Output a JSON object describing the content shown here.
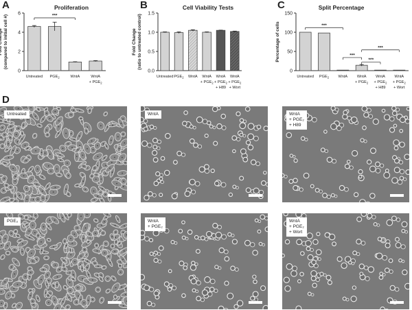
{
  "panel_letters": {
    "a": "A",
    "b": "B",
    "c": "C",
    "d": "D"
  },
  "chart_data": [
    {
      "type": "bar",
      "title": "Proliferation",
      "ylabel_lines": [
        "Fold Change",
        "(compared to initial cell #)"
      ],
      "categories": [
        [
          "Untreated"
        ],
        [
          "PGE₂"
        ],
        [
          "WntA"
        ],
        [
          "WntA",
          "+ PGE₂"
        ]
      ],
      "values": [
        4.6,
        4.6,
        0.9,
        1.0
      ],
      "errors": [
        0.1,
        0.45,
        0.03,
        0.05
      ],
      "fills": [
        "light",
        "light",
        "light",
        "light"
      ],
      "ylim": [
        0,
        6
      ],
      "yticks": [
        0,
        2,
        4,
        6
      ],
      "significance": [
        {
          "from": 0,
          "to": 2,
          "label": "***"
        }
      ]
    },
    {
      "type": "bar",
      "title": "Cell Viability Tests",
      "ylabel_lines": [
        "Fold  Change",
        "(ratio to untreated control)"
      ],
      "categories": [
        [
          "Untreated"
        ],
        [
          "PGE₂"
        ],
        [
          "WntA"
        ],
        [
          "WntA",
          "+ PGE₂"
        ],
        [
          "WntA",
          "+ PGE₂",
          "+ H89"
        ],
        [
          "WntA",
          "+ PGE₂",
          "+ Wort"
        ]
      ],
      "values": [
        1.0,
        0.99,
        1.05,
        1.0,
        1.05,
        1.02
      ],
      "errors": [
        0.01,
        0.02,
        0.015,
        0.01,
        0.005,
        0.01
      ],
      "fills": [
        "light",
        "light",
        "hatch",
        "light",
        "dark",
        "darkhatch"
      ],
      "ylim": [
        0,
        1.5
      ],
      "yticks": [
        0,
        0.5,
        1.0,
        1.5
      ],
      "significance": []
    },
    {
      "type": "bar",
      "title": "Split Percentage",
      "ylabel_lines": [
        "Percentage of cells"
      ],
      "categories": [
        [
          "Untreated"
        ],
        [
          "PGE₂"
        ],
        [
          "WntA"
        ],
        [
          "WntA",
          "+ PGE₂"
        ],
        [
          "WntA",
          "+ PGE₂",
          "+ H89"
        ],
        [
          "WntA",
          "+ PGE₂",
          "+ Wort"
        ]
      ],
      "values": [
        100,
        98,
        0.5,
        14,
        0.5,
        0.3
      ],
      "errors": [
        0,
        0,
        0,
        2,
        0,
        0
      ],
      "fills": [
        "light",
        "light",
        "light",
        "light",
        "light",
        "light"
      ],
      "ylim": [
        0,
        150
      ],
      "yticks": [
        0,
        50,
        100,
        150
      ],
      "significance": [
        {
          "from": 0,
          "to": 2,
          "label": "***"
        },
        {
          "from": 2,
          "to": 3,
          "label": "***"
        },
        {
          "from": 3,
          "to": 5,
          "label": "***"
        },
        {
          "from": 3,
          "to": 4,
          "label": "***"
        }
      ]
    }
  ],
  "micrographs": [
    {
      "label": "Untreated",
      "density": "dense"
    },
    {
      "label": "WntA",
      "density": "sparse"
    },
    {
      "label": "WntA\n+ PGE₂\n+ H89",
      "density": "sparse"
    },
    {
      "label": "PGE₂",
      "density": "dense"
    },
    {
      "label": "WntA\n+ PGE₂",
      "density": "sparse"
    },
    {
      "label": "WntA\n+ PGE₂\n+ Wort",
      "density": "sparse"
    }
  ],
  "colors": {
    "bar_light": "#d3d3d3",
    "bar_dark": "#555555",
    "axis": "#333333",
    "micro_bg": "#7a7a7a"
  }
}
